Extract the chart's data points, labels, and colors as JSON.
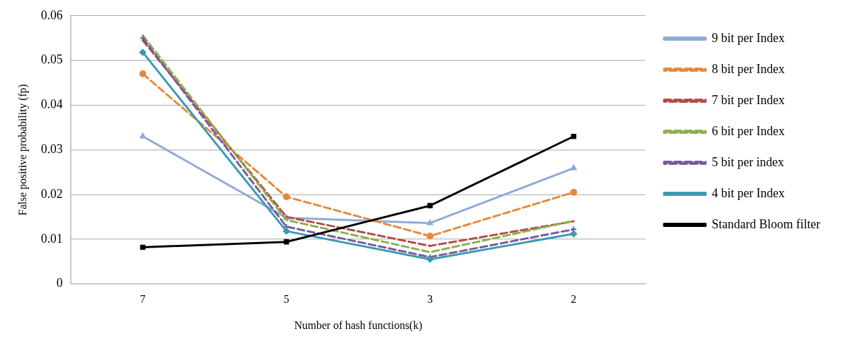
{
  "chart_data": {
    "type": "line",
    "xlabel": "Number of hash functions(k)",
    "ylabel": "False positive probability (fp)",
    "categories": [
      "7",
      "5",
      "3",
      "2"
    ],
    "ylim": [
      0,
      0.06
    ],
    "yticks": [
      0,
      0.01,
      0.02,
      0.03,
      0.04,
      0.05,
      0.06
    ],
    "grid": "y",
    "legend": "right",
    "series": [
      {
        "name": "9 bit per Index",
        "color": "#8eaad8",
        "marker": "triangle",
        "line_style": "solid",
        "values": [
          0.033,
          0.0148,
          0.0136,
          0.0259
        ]
      },
      {
        "name": "8 bit per Index",
        "color": "#e8883a",
        "marker": "circle",
        "line_style": "dashed",
        "values": [
          0.047,
          0.0195,
          0.0107,
          0.0205
        ]
      },
      {
        "name": "7 bit per Index",
        "color": "#b54a4a",
        "marker": "none",
        "line_style": "dashed",
        "values": [
          0.0545,
          0.015,
          0.0085,
          0.014
        ]
      },
      {
        "name": "6 bit per Index",
        "color": "#8cb04a",
        "marker": "none",
        "line_style": "dashed",
        "values": [
          0.0556,
          0.0143,
          0.0071,
          0.0141
        ]
      },
      {
        "name": "5 bit per index",
        "color": "#7b5a9e",
        "marker": "cross",
        "line_style": "dashed",
        "values": [
          0.055,
          0.0128,
          0.006,
          0.0122
        ]
      },
      {
        "name": "4 bit per Index",
        "color": "#3a9bb0",
        "marker": "diamond",
        "line_style": "solid",
        "values": [
          0.0518,
          0.0118,
          0.0055,
          0.0112
        ]
      },
      {
        "name": "Standard Bloom filter",
        "color": "#000000",
        "marker": "square",
        "line_style": "solid",
        "values": [
          0.0082,
          0.0094,
          0.0175,
          0.033
        ]
      }
    ]
  }
}
